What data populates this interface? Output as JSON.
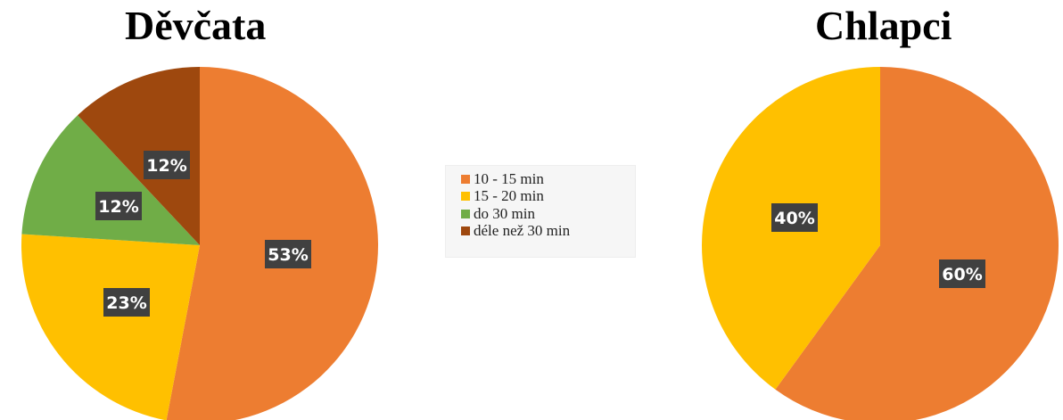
{
  "colors": {
    "orange": "#ED7D31",
    "yellow": "#FFC000",
    "green": "#70AD47",
    "brown": "#9E480E",
    "label_bg": "#404040"
  },
  "legend": {
    "items": [
      {
        "label": "10 - 15 min",
        "color": "#ED7D31"
      },
      {
        "label": "15 - 20 min",
        "color": "#FFC000"
      },
      {
        "label": "do 30 min",
        "color": "#70AD47"
      },
      {
        "label": "déle než 30 min",
        "color": "#9E480E"
      }
    ]
  },
  "chart_data": [
    {
      "type": "pie",
      "title": "Děvčata",
      "categories": [
        "10 - 15 min",
        "15 - 20 min",
        "do 30 min",
        "déle než 30 min"
      ],
      "values": [
        53,
        23,
        12,
        12
      ],
      "labels": [
        "53%",
        "23%",
        "12%",
        "12%"
      ],
      "colors": [
        "#ED7D31",
        "#FFC000",
        "#70AD47",
        "#9E480E"
      ],
      "start_angle": 0,
      "direction": "clockwise",
      "legend": "center"
    },
    {
      "type": "pie",
      "title": "Chlapci",
      "categories": [
        "10 - 15 min",
        "15 - 20 min"
      ],
      "values": [
        60,
        40
      ],
      "labels": [
        "60%",
        "40%"
      ],
      "colors": [
        "#ED7D31",
        "#FFC000"
      ],
      "start_angle": 0,
      "direction": "clockwise",
      "legend": "center"
    }
  ]
}
